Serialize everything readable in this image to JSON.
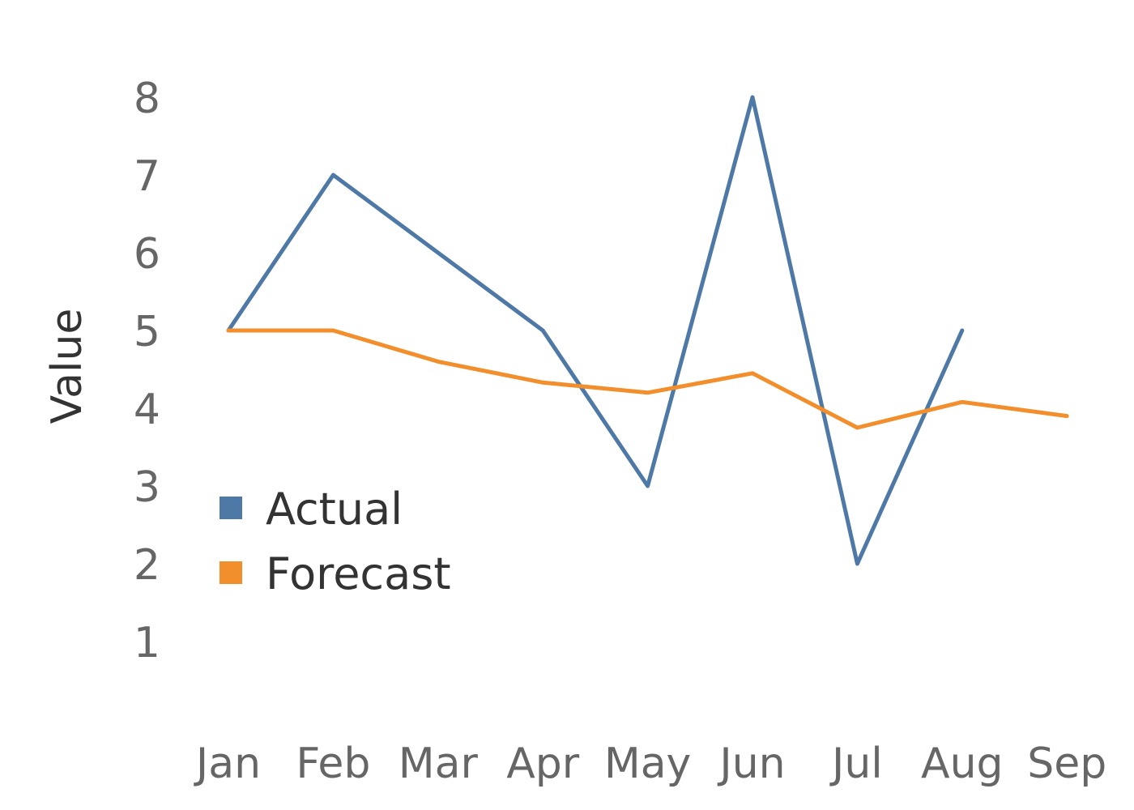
{
  "chart_data": {
    "type": "line",
    "categories": [
      "Jan",
      "Feb",
      "Mar",
      "Apr",
      "May",
      "Jun",
      "Jul",
      "Aug",
      "Sep"
    ],
    "series": [
      {
        "name": "Actual",
        "color": "#4E79A7",
        "values": [
          5,
          7,
          6,
          5,
          3,
          8,
          2,
          5,
          null
        ]
      },
      {
        "name": "Forecast",
        "color": "#F28E2B",
        "values": [
          5,
          5,
          4.6,
          4.33,
          4.2,
          4.45,
          3.75,
          4.08,
          3.9
        ]
      }
    ],
    "ylabel": "Value",
    "xlabel": "",
    "yticks": [
      1,
      2,
      3,
      4,
      5,
      6,
      7,
      8
    ],
    "ylim": [
      0,
      8.5
    ],
    "grid": false,
    "legend_position": "lower-left"
  }
}
